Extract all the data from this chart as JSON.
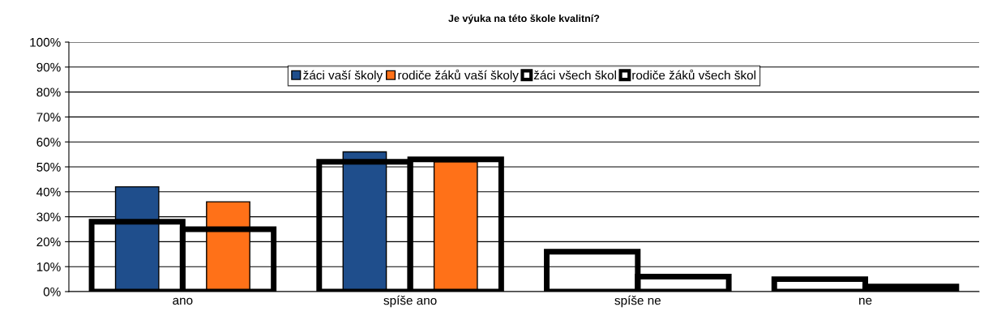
{
  "chart_data": {
    "type": "bar",
    "title": "Je výuka na této škole kvalitní?",
    "categories": [
      "ano",
      "spíše ano",
      "spíše ne",
      "ne"
    ],
    "series": [
      {
        "name": "žáci vaší školy",
        "color": "#1f4e8c",
        "values": [
          42,
          56,
          null,
          null
        ]
      },
      {
        "name": "rodiče žáků vaší školy",
        "color": "#ff7118",
        "values": [
          36,
          52,
          null,
          null
        ]
      },
      {
        "name": "žáci všech škol",
        "color": "#000000",
        "values": [
          28,
          52,
          16,
          5
        ]
      },
      {
        "name": "rodiče žáků všech škol",
        "color": "#000000",
        "values": [
          25,
          53,
          6,
          2
        ]
      }
    ],
    "ylim": [
      0,
      100
    ],
    "yticks": [
      {
        "value": 0,
        "label": "0%"
      },
      {
        "value": 10,
        "label": "10%"
      },
      {
        "value": 20,
        "label": "20%"
      },
      {
        "value": 30,
        "label": "30%"
      },
      {
        "value": 40,
        "label": "40%"
      },
      {
        "value": 50,
        "label": "50%"
      },
      {
        "value": 60,
        "label": "60%"
      },
      {
        "value": 70,
        "label": "70%"
      },
      {
        "value": 80,
        "label": "80%"
      },
      {
        "value": 90,
        "label": "90%"
      },
      {
        "value": 100,
        "label": "100%"
      }
    ],
    "grid": "y",
    "legend": "top"
  }
}
